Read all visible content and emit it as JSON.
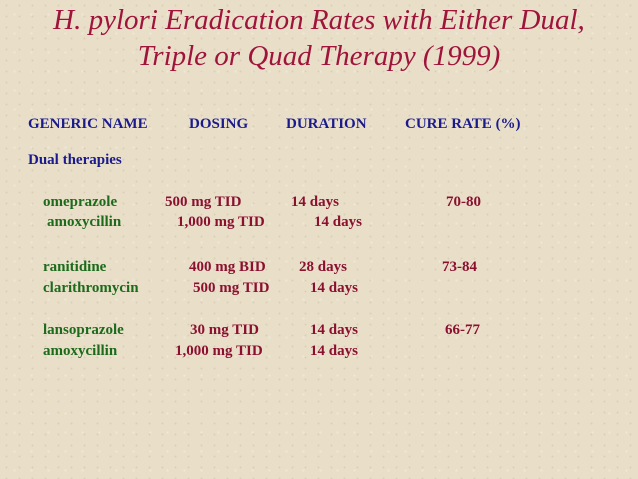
{
  "title": {
    "line1": "H. pylori Eradication Rates with Either Dual,",
    "line2": "Triple or Quad Therapy (1999)"
  },
  "headers": {
    "generic_name": "GENERIC NAME",
    "dosing": "DOSING",
    "duration": "DURATION",
    "cure_rate": "CURE RATE (%)"
  },
  "section_label": "Dual therapies",
  "therapies": [
    {
      "drug1": "omeprazole",
      "dose1": "500 mg TID",
      "duration1": "14 days",
      "drug2": "amoxycillin",
      "dose2": "1,000 mg TID",
      "duration2": "14 days",
      "cure_rate": "70-80"
    },
    {
      "drug1": "ranitidine",
      "dose1": "400 mg BID",
      "duration1": "28 days",
      "drug2": "clarithromycin",
      "dose2": "500 mg TID",
      "duration2": "14 days",
      "cure_rate": "73-84"
    },
    {
      "drug1": "lansoprazole",
      "dose1": "30 mg TID",
      "duration1": "14 days",
      "drug2": "amoxycillin",
      "dose2": "1,000 mg TID",
      "duration2": "14 days",
      "cure_rate": "66-77"
    }
  ]
}
